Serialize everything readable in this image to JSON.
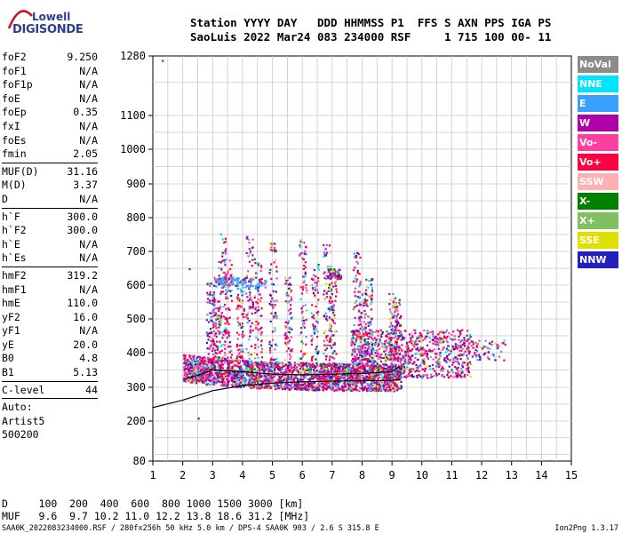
{
  "logo": {
    "line1": "Lowell",
    "line2": "DIGISONDE"
  },
  "header": {
    "line1": "Station YYYY DAY   DDD HHMMSS P1  FFS S AXN PPS IGA PS",
    "line2": "SaoLuis 2022 Mar24 083 234000 RSF     1 715 100 00- 11"
  },
  "params": [
    {
      "group": [
        {
          "key": "foF2",
          "value": "9.250"
        },
        {
          "key": "foF1",
          "value": "N/A"
        },
        {
          "key": "foF1p",
          "value": "N/A"
        },
        {
          "key": "foE",
          "value": "N/A"
        },
        {
          "key": "foEp",
          "value": "0.35"
        },
        {
          "key": "fxI",
          "value": "N/A"
        },
        {
          "key": "foEs",
          "value": "N/A"
        },
        {
          "key": "fmin",
          "value": "2.05"
        }
      ]
    },
    {
      "group": [
        {
          "key": "MUF(D)",
          "value": "31.16"
        },
        {
          "key": "M(D)",
          "value": "3.37"
        },
        {
          "key": "D",
          "value": "N/A"
        }
      ]
    },
    {
      "group": [
        {
          "key": "h`F",
          "value": "300.0"
        },
        {
          "key": "h`F2",
          "value": "300.0"
        },
        {
          "key": "h`E",
          "value": "N/A"
        },
        {
          "key": "h`Es",
          "value": "N/A"
        }
      ]
    },
    {
      "group": [
        {
          "key": "hmF2",
          "value": "319.2"
        },
        {
          "key": "hmF1",
          "value": "N/A"
        },
        {
          "key": "hmE",
          "value": "110.0"
        },
        {
          "key": "yF2",
          "value": "16.0"
        },
        {
          "key": "yF1",
          "value": "N/A"
        },
        {
          "key": "yE",
          "value": "20.0"
        },
        {
          "key": "B0",
          "value": "4.8"
        },
        {
          "key": "B1",
          "value": "5.13"
        }
      ]
    },
    {
      "group": [
        {
          "key": "C-level",
          "value": "44"
        }
      ]
    },
    {
      "group": [
        {
          "key": "Auto:",
          "value": ""
        },
        {
          "key": "Artist5",
          "value": ""
        },
        {
          "key": "500200",
          "value": ""
        }
      ]
    }
  ],
  "footer": {
    "d_line": "D     100  200  400  600  800 1000 1500 3000 [km]",
    "muf_line": "MUF   9.6  9.7 10.2 11.0 12.2 13.8 18.6 31.2 [MHz]",
    "bottom": "SAA0K_2022083234000.RSF / 280fx256h 50 kHz 5.0 km / DPS-4 SAA0K 903 / 2.6 S 315.8 E",
    "version": "Ion2Png 1.3.17"
  },
  "legend": [
    {
      "label": "NoVal",
      "color": "#8c8c8c"
    },
    {
      "label": "NNE",
      "color": "#00e5ff"
    },
    {
      "label": "E",
      "color": "#3aa0ff"
    },
    {
      "label": "W",
      "color": "#b000a8"
    },
    {
      "label": "Vo-",
      "color": "#ff40a0"
    },
    {
      "label": "Vo+",
      "color": "#ff0040"
    },
    {
      "label": "SSW",
      "color": "#ffb0b0"
    },
    {
      "label": "X-",
      "color": "#008000"
    },
    {
      "label": "X+",
      "color": "#80c060"
    },
    {
      "label": "SSE",
      "color": "#e0e000"
    },
    {
      "label": "NNW",
      "color": "#2020c0"
    }
  ],
  "chart_data": {
    "type": "scatter",
    "title": "",
    "xlabel": "",
    "ylabel": "",
    "xlim": [
      1,
      15
    ],
    "ylim": [
      80,
      1280
    ],
    "y_scale": "log-like (ionogram virtual height)",
    "grid": true,
    "x_ticks": [
      1,
      2,
      3,
      4,
      5,
      6,
      7,
      8,
      9,
      10,
      11,
      12,
      13,
      14,
      15
    ],
    "y_ticks": [
      80,
      200,
      300,
      400,
      500,
      600,
      700,
      800,
      900,
      1000,
      1100,
      1280
    ],
    "echo_clusters": [
      {
        "name": "F-layer trace",
        "x_range": [
          2.0,
          12.8
        ],
        "y_range": [
          290,
          470
        ]
      },
      {
        "name": "spread upper",
        "x_range": [
          2.8,
          9.3
        ],
        "y_range": [
          450,
          820
        ]
      },
      {
        "name": "secondary echo",
        "x_range": [
          3.0,
          4.5
        ],
        "y_range": [
          590,
          640
        ]
      }
    ],
    "profile_curve": {
      "x": [
        1.0,
        2.0,
        3.0,
        4.0,
        5.0,
        6.0,
        7.0,
        8.0,
        9.0,
        9.25
      ],
      "y": [
        240,
        262,
        290,
        305,
        312,
        316,
        318,
        319,
        320,
        322
      ]
    },
    "trace_curve": {
      "x": [
        2.0,
        2.5,
        3.0,
        4.0,
        5.0,
        6.0,
        7.0,
        8.0,
        9.0,
        9.25
      ],
      "y": [
        322,
        335,
        350,
        345,
        338,
        336,
        338,
        340,
        345,
        360
      ]
    }
  }
}
